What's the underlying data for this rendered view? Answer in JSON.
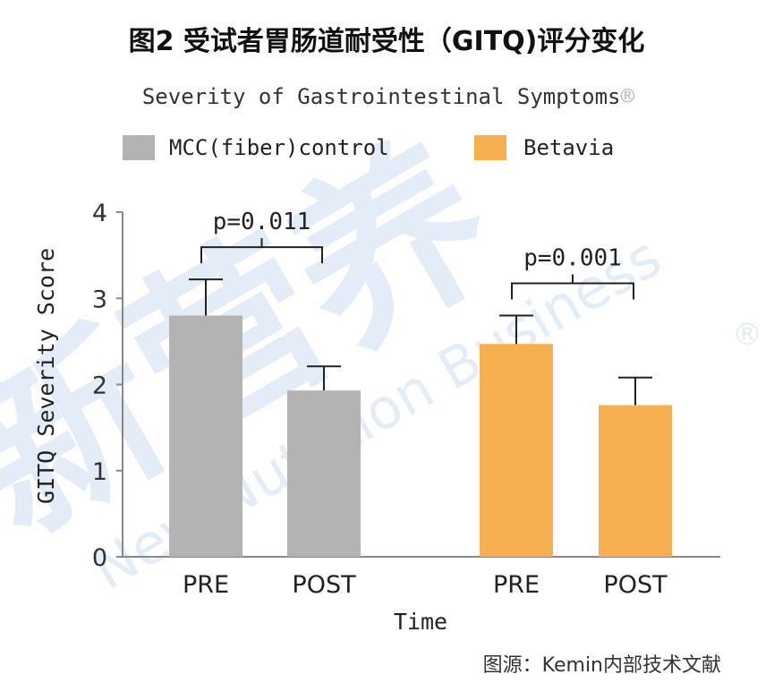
{
  "page_title": "图2 受试者胃肠道耐受性（GITQ)评分变化",
  "source_note": "图源：Kemin内部技术文献",
  "watermark": {
    "main": "新营养",
    "sub": "New Nutrition Business",
    "mark": "®"
  },
  "colors": {
    "control": "#b3b3b3",
    "betavia": "#f6b04f",
    "error": "#222222",
    "axis": "#888888"
  },
  "chart_data": {
    "type": "bar",
    "title": "Severity of Gastrointestinal Symptoms",
    "title_mark": "®",
    "xlabel": "Time",
    "ylabel": "GITQ Severity Score",
    "ylim": [
      0,
      4
    ],
    "yticks": [
      0,
      1,
      2,
      3,
      4
    ],
    "grid": false,
    "legend_position": "top",
    "series": [
      {
        "name": "MCC(fiber)control",
        "color": "#b3b3b3",
        "categories": [
          "PRE",
          "POST"
        ],
        "values": [
          2.8,
          1.93
        ],
        "errors": [
          0.42,
          0.28
        ]
      },
      {
        "name": "Betavia",
        "color": "#f6b04f",
        "categories": [
          "PRE",
          "POST"
        ],
        "values": [
          2.47,
          1.76
        ],
        "errors": [
          0.33,
          0.32
        ]
      }
    ],
    "annotations": [
      {
        "text": "p=0.011",
        "series": 0
      },
      {
        "text": "p=0.001",
        "series": 1
      }
    ]
  }
}
